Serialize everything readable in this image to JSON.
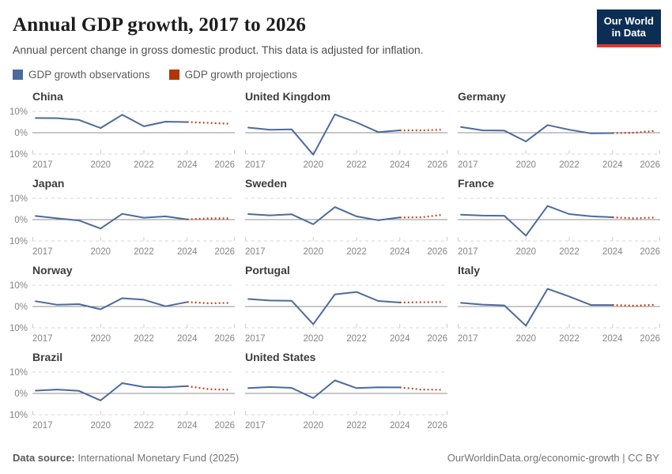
{
  "header": {
    "title": "Annual GDP growth, 2017 to 2026",
    "subtitle": "Annual percent change in gross domestic product. This data is adjusted for inflation."
  },
  "logo": {
    "line1": "Our World",
    "line2": "in Data"
  },
  "legend": [
    {
      "label": "GDP growth observations",
      "color": "#4c6a9c"
    },
    {
      "label": "GDP growth projections",
      "color": "#b13507"
    }
  ],
  "colors": {
    "observation": "#4c6a9c",
    "projection": "#bd3a10",
    "logo_bg": "#0d2e54",
    "logo_stripe": "#e0362c"
  },
  "chart_data": {
    "type": "line",
    "title": "Annual GDP growth, 2017 to 2026",
    "subtitle": "Annual percent change in gross domestic product. This data is adjusted for inflation.",
    "small_multiples": true,
    "x_obs": [
      2017,
      2018,
      2019,
      2020,
      2021,
      2022,
      2023,
      2024
    ],
    "x_proj": [
      2024,
      2025,
      2026
    ],
    "x_ticks": [
      2017,
      2020,
      2022,
      2024,
      2026
    ],
    "xlim": [
      2016.85,
      2026.2
    ],
    "ylim": [
      -10,
      10
    ],
    "y_ticks": [
      10,
      0,
      -10
    ],
    "y_tick_labels": [
      "10%",
      "0%",
      "-10%"
    ],
    "grid": "dashed horizontal at ±10%, solid at 0%",
    "legend_position": "top-left",
    "series_units": "percent",
    "panels": [
      {
        "title": "China",
        "observations": [
          6.9,
          6.8,
          6.0,
          2.2,
          8.4,
          3.0,
          5.2,
          5.0
        ],
        "projections": [
          5.0,
          4.6,
          4.2
        ]
      },
      {
        "title": "United Kingdom",
        "observations": [
          2.4,
          1.4,
          1.6,
          -10.3,
          8.6,
          4.8,
          0.3,
          1.1
        ],
        "projections": [
          1.1,
          1.1,
          1.4
        ]
      },
      {
        "title": "Germany",
        "observations": [
          2.7,
          1.1,
          1.0,
          -4.1,
          3.6,
          1.4,
          -0.3,
          -0.2
        ],
        "projections": [
          -0.2,
          0.0,
          0.9
        ]
      },
      {
        "title": "Japan",
        "observations": [
          1.7,
          0.6,
          -0.4,
          -4.2,
          2.7,
          0.9,
          1.5,
          0.1
        ],
        "projections": [
          0.1,
          0.6,
          0.6
        ]
      },
      {
        "title": "Sweden",
        "observations": [
          2.6,
          2.0,
          2.5,
          -2.2,
          5.9,
          1.5,
          -0.3,
          1.0
        ],
        "projections": [
          1.0,
          1.1,
          2.3
        ]
      },
      {
        "title": "France",
        "observations": [
          2.3,
          1.9,
          1.8,
          -7.5,
          6.4,
          2.6,
          1.6,
          1.1
        ],
        "projections": [
          1.1,
          0.6,
          1.0
        ]
      },
      {
        "title": "Norway",
        "observations": [
          2.5,
          0.8,
          1.1,
          -1.3,
          3.9,
          3.2,
          0.1,
          2.1
        ],
        "projections": [
          2.1,
          1.5,
          1.7
        ]
      },
      {
        "title": "Portugal",
        "observations": [
          3.5,
          2.8,
          2.7,
          -8.3,
          5.7,
          6.8,
          2.6,
          1.9
        ],
        "projections": [
          1.9,
          2.0,
          2.1
        ]
      },
      {
        "title": "Italy",
        "observations": [
          1.7,
          0.9,
          0.5,
          -9.0,
          8.3,
          4.7,
          0.7,
          0.7
        ],
        "projections": [
          0.7,
          0.4,
          0.8
        ]
      },
      {
        "title": "Brazil",
        "observations": [
          1.3,
          1.8,
          1.2,
          -3.3,
          4.8,
          3.0,
          2.9,
          3.4
        ],
        "projections": [
          3.4,
          2.0,
          1.7
        ]
      },
      {
        "title": "United States",
        "observations": [
          2.5,
          3.0,
          2.6,
          -2.2,
          6.1,
          2.5,
          2.9,
          2.8
        ],
        "projections": [
          2.8,
          1.8,
          1.7
        ]
      }
    ]
  },
  "footer": {
    "source_label": "Data source:",
    "source_value": "International Monetary Fund (2025)",
    "right_text": "OurWorldinData.org/economic-growth | CC BY"
  }
}
